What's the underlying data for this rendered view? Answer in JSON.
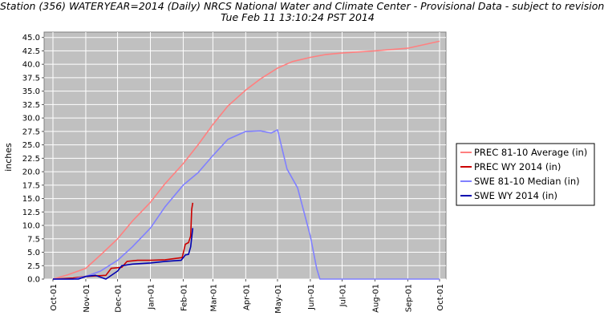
{
  "chart_data": {
    "type": "line",
    "title_line1": "Station (356) WATERYEAR=2014 (Daily) NRCS National Water and Climate Center - Provisional Data - subject to revision",
    "title_line2": "Tue Feb 11 13:10:24 PST 2014",
    "ylabel": "inches",
    "xlabel": "",
    "ylim": [
      0,
      46
    ],
    "y_ticks": [
      "0.0",
      "2.5",
      "5.0",
      "7.5",
      "10.0",
      "12.5",
      "15.0",
      "17.5",
      "20.0",
      "22.5",
      "25.0",
      "27.5",
      "30.0",
      "32.5",
      "35.0",
      "37.5",
      "40.0",
      "42.5",
      "45.0"
    ],
    "x_ticks": [
      "Oct-01",
      "Nov-01",
      "Dec-01",
      "Jan-01",
      "Feb-01",
      "Mar-01",
      "Apr-01",
      "May-01",
      "Jun-01",
      "Jul-01",
      "Aug-01",
      "Sep-01",
      "Oct-01"
    ],
    "grid": true,
    "legend_position": "right",
    "background": "#c0c0c0",
    "series": [
      {
        "name": "PREC 81-10 Average (in)",
        "color": "#ff8080",
        "x": [
          "Oct-01",
          "Oct-15",
          "Nov-01",
          "Nov-15",
          "Dec-01",
          "Dec-15",
          "Jan-01",
          "Jan-15",
          "Feb-01",
          "Feb-15",
          "Mar-01",
          "Mar-15",
          "Apr-01",
          "Apr-15",
          "May-01",
          "May-15",
          "Jun-01",
          "Jun-15",
          "Jul-01",
          "Aug-01",
          "Sep-01",
          "Oct-01"
        ],
        "values": [
          0.0,
          0.8,
          2.0,
          4.5,
          7.5,
          10.8,
          14.3,
          17.8,
          21.5,
          25.0,
          28.8,
          32.2,
          35.2,
          37.3,
          39.3,
          40.5,
          41.3,
          41.8,
          42.1,
          42.5,
          43.0,
          44.3
        ]
      },
      {
        "name": "PREC WY 2014  (in)",
        "color": "#cc0000",
        "x": [
          "Oct-01",
          "Oct-20",
          "Nov-01",
          "Nov-20",
          "Nov-25",
          "Dec-05",
          "Dec-10",
          "Dec-20",
          "Jan-01",
          "Jan-15",
          "Jan-31",
          "Feb-03",
          "Feb-06",
          "Feb-08",
          "Feb-09",
          "Feb-10"
        ],
        "values": [
          0.0,
          0.2,
          0.5,
          0.7,
          2.0,
          2.2,
          3.3,
          3.5,
          3.5,
          3.6,
          4.0,
          6.5,
          6.8,
          8.0,
          13.0,
          14.2
        ]
      },
      {
        "name": "SWE 81-10 Median (in)",
        "color": "#8080ff",
        "x": [
          "Oct-01",
          "Oct-20",
          "Nov-01",
          "Nov-15",
          "Dec-01",
          "Dec-15",
          "Jan-01",
          "Jan-15",
          "Feb-01",
          "Feb-15",
          "Mar-01",
          "Mar-15",
          "Apr-01",
          "Apr-15",
          "Apr-25",
          "May-01",
          "May-10",
          "May-20",
          "Jun-01",
          "Jun-07",
          "Jun-10",
          "Jul-01",
          "Oct-01"
        ],
        "values": [
          0.0,
          0.0,
          0.5,
          1.5,
          3.5,
          6.0,
          9.5,
          13.5,
          17.5,
          19.8,
          23.0,
          26.0,
          27.5,
          27.6,
          27.2,
          27.8,
          20.5,
          17.0,
          8.0,
          2.0,
          0.0,
          0.0,
          0.0
        ]
      },
      {
        "name": "SWE WY 2014  (in)",
        "color": "#0000b0",
        "x": [
          "Oct-01",
          "Oct-25",
          "Nov-01",
          "Nov-10",
          "Nov-20",
          "Dec-01",
          "Dec-05",
          "Dec-15",
          "Jan-01",
          "Jan-15",
          "Jan-30",
          "Feb-03",
          "Feb-06",
          "Feb-08",
          "Feb-10"
        ],
        "values": [
          0.0,
          0.0,
          0.5,
          0.7,
          0.0,
          1.5,
          2.5,
          2.8,
          3.0,
          3.3,
          3.5,
          4.5,
          4.6,
          6.0,
          9.5
        ]
      }
    ]
  }
}
